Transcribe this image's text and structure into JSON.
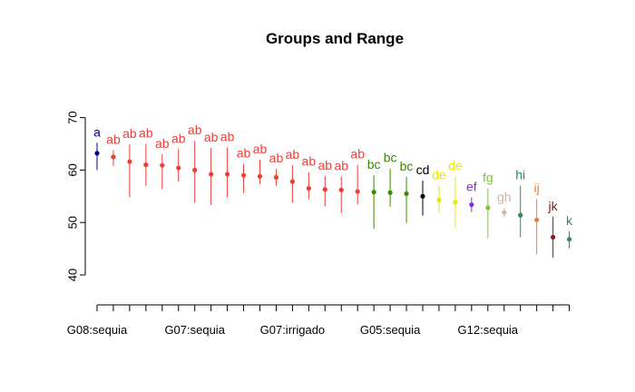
{
  "chart_data": {
    "type": "scatter",
    "title": "Groups and Range",
    "xlabel": "",
    "ylabel": "",
    "ylim": [
      38,
      72
    ],
    "y_ticks": [
      40,
      50,
      60,
      70
    ],
    "x_tick_labels": [
      {
        "index": 0,
        "label": "G08:sequia"
      },
      {
        "index": 6,
        "label": "G07:sequia"
      },
      {
        "index": 12,
        "label": "G07:irrigado"
      },
      {
        "index": 18,
        "label": "G05:sequia"
      },
      {
        "index": 24,
        "label": "G12:sequia"
      }
    ],
    "points": [
      {
        "mean": 63.2,
        "min": 60.0,
        "max": 65.2,
        "group": "a",
        "color": "#00008b"
      },
      {
        "mean": 62.5,
        "min": 60.8,
        "max": 63.8,
        "group": "ab",
        "color": "#e8403a"
      },
      {
        "mean": 61.6,
        "min": 54.8,
        "max": 64.9,
        "group": "ab",
        "color": "#e8403a"
      },
      {
        "mean": 61.0,
        "min": 57.0,
        "max": 65.0,
        "group": "ab",
        "color": "#e8403a"
      },
      {
        "mean": 60.9,
        "min": 56.3,
        "max": 63.0,
        "group": "ab",
        "color": "#e8403a"
      },
      {
        "mean": 60.4,
        "min": 57.8,
        "max": 64.0,
        "group": "ab",
        "color": "#e8403a"
      },
      {
        "mean": 60.0,
        "min": 53.8,
        "max": 65.6,
        "group": "ab",
        "color": "#e8403a"
      },
      {
        "mean": 59.2,
        "min": 53.3,
        "max": 64.2,
        "group": "ab",
        "color": "#e8403a"
      },
      {
        "mean": 59.2,
        "min": 54.8,
        "max": 64.3,
        "group": "ab",
        "color": "#e8403a"
      },
      {
        "mean": 59.0,
        "min": 55.6,
        "max": 61.2,
        "group": "ab",
        "color": "#e8403a"
      },
      {
        "mean": 58.8,
        "min": 57.3,
        "max": 62.0,
        "group": "ab",
        "color": "#e8403a"
      },
      {
        "mean": 58.6,
        "min": 57.0,
        "max": 60.2,
        "group": "ab",
        "color": "#e8403a"
      },
      {
        "mean": 57.8,
        "min": 53.8,
        "max": 60.9,
        "group": "ab",
        "color": "#e8403a"
      },
      {
        "mean": 56.5,
        "min": 54.4,
        "max": 59.6,
        "group": "ab",
        "color": "#e8403a"
      },
      {
        "mean": 56.3,
        "min": 53.1,
        "max": 58.9,
        "group": "ab",
        "color": "#e8403a"
      },
      {
        "mean": 56.2,
        "min": 51.8,
        "max": 58.8,
        "group": "ab",
        "color": "#e8403a"
      },
      {
        "mean": 55.9,
        "min": 53.4,
        "max": 61.0,
        "group": "ab",
        "color": "#e8403a"
      },
      {
        "mean": 55.8,
        "min": 48.8,
        "max": 59.0,
        "group": "bc",
        "color": "#3d8b00"
      },
      {
        "mean": 55.7,
        "min": 53.0,
        "max": 60.3,
        "group": "bc",
        "color": "#3d8b00"
      },
      {
        "mean": 55.5,
        "min": 49.9,
        "max": 58.7,
        "group": "bc",
        "color": "#3d8b00"
      },
      {
        "mean": 55.0,
        "min": 51.3,
        "max": 58.0,
        "group": "cd",
        "color": "#000000"
      },
      {
        "mean": 54.3,
        "min": 51.9,
        "max": 57.0,
        "group": "de",
        "color": "#e8e800"
      },
      {
        "mean": 53.9,
        "min": 49.0,
        "max": 58.8,
        "group": "de",
        "color": "#e8e800"
      },
      {
        "mean": 53.4,
        "min": 52.0,
        "max": 54.8,
        "group": "ef",
        "color": "#8a2be2"
      },
      {
        "mean": 52.8,
        "min": 47.0,
        "max": 56.5,
        "group": "fg",
        "color": "#7ccd1e"
      },
      {
        "mean": 51.9,
        "min": 51.0,
        "max": 52.8,
        "group": "gh",
        "color": "#d2b49c"
      },
      {
        "mean": 51.4,
        "min": 47.2,
        "max": 57.0,
        "group": "hi",
        "color": "#2e8b57"
      },
      {
        "mean": 50.5,
        "min": 43.9,
        "max": 54.5,
        "group": "ij",
        "color": "#e67e40"
      },
      {
        "mean": 47.2,
        "min": 43.3,
        "max": 51.1,
        "group": "jk",
        "color": "#8b1a1a"
      },
      {
        "mean": 46.8,
        "min": 45.1,
        "max": 48.3,
        "group": "k",
        "color": "#2e8b57"
      }
    ]
  }
}
